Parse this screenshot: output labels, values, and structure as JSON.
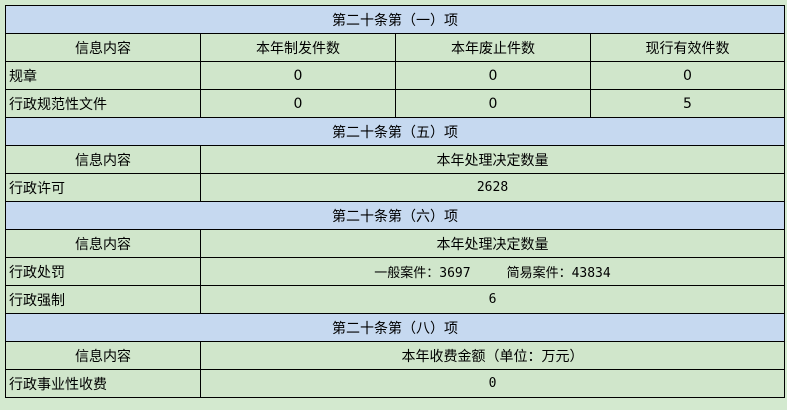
{
  "colors": {
    "section_header": "#c6d9f0",
    "cell": "#d0e6cb",
    "border": "#000000"
  },
  "section1": {
    "title": "第二十条第（一）项",
    "headers": [
      "信息内容",
      "本年制发件数",
      "本年废止件数",
      "现行有效件数"
    ],
    "rows": [
      {
        "label": "规章",
        "values": [
          "0",
          "0",
          "0"
        ]
      },
      {
        "label": "行政规范性文件",
        "values": [
          "0",
          "0",
          "5"
        ]
      }
    ]
  },
  "section2": {
    "title": "第二十条第（五）项",
    "headers": [
      "信息内容",
      "本年处理决定数量"
    ],
    "rows": [
      {
        "label": "行政许可",
        "value": "2628"
      }
    ]
  },
  "section3": {
    "title": "第二十条第（六）项",
    "headers": [
      "信息内容",
      "本年处理决定数量"
    ],
    "rows": [
      {
        "label": "行政处罚",
        "general": "一般案件：3697",
        "simple": "简易案件：43834"
      },
      {
        "label": "行政强制",
        "value": "6"
      }
    ]
  },
  "section4": {
    "title": "第二十条第（八）项",
    "headers": [
      "信息内容",
      "本年收费金额（单位：万元）"
    ],
    "rows": [
      {
        "label": "行政事业性收费",
        "value": "0"
      }
    ]
  }
}
